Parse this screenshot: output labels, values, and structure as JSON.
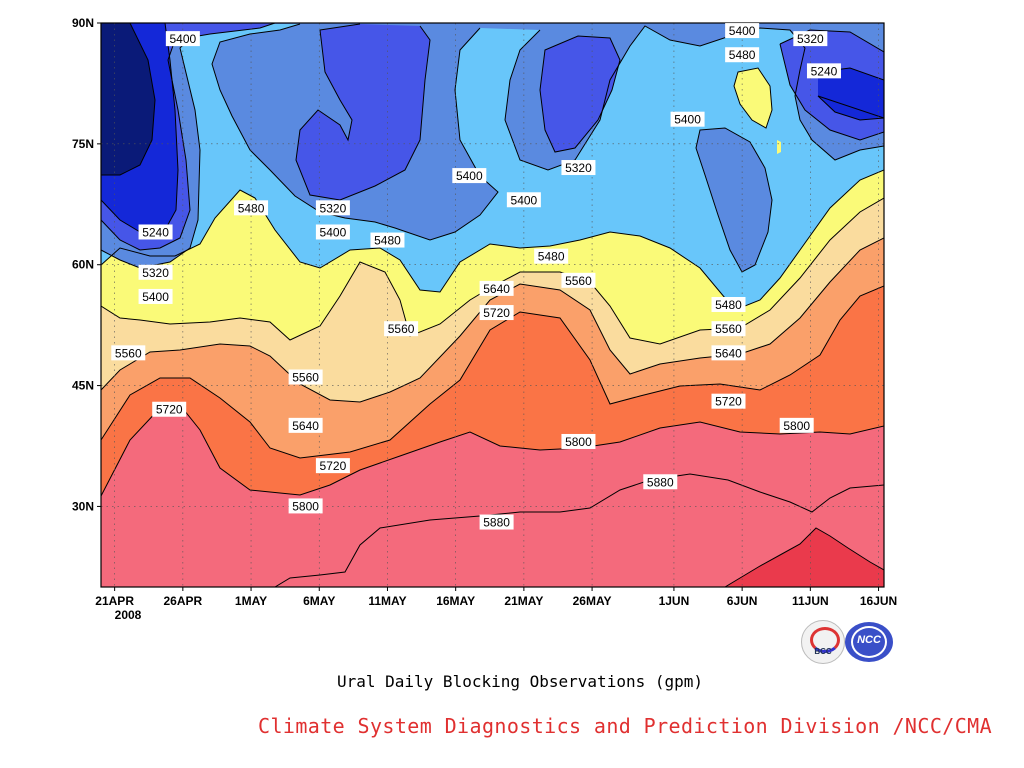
{
  "chart_data": {
    "type": "heatmap",
    "subtitle": "Ural Daily Blocking Observations (gpm)",
    "x_ticks": [
      "21APR",
      "26APR",
      "1MAY",
      "6MAY",
      "11MAY",
      "16MAY",
      "21MAY",
      "26MAY",
      "1JUN",
      "6JUN",
      "11JUN",
      "16JUN"
    ],
    "x_year_label": "2008",
    "y_ticks": [
      "30N",
      "45N",
      "60N",
      "75N",
      "90N"
    ],
    "ylim": [
      "20N",
      "90N"
    ],
    "xlim": [
      "20APR 2008",
      "16JUN 2008"
    ],
    "grid": true,
    "contour_levels": [
      5160,
      5240,
      5320,
      5400,
      5480,
      5560,
      5640,
      5720,
      5800,
      5880
    ],
    "contour_colors": [
      "#0a1a78",
      "#1428d8",
      "#4656e8",
      "#5a8ae0",
      "#68c6fa",
      "#fafa78",
      "#fadc9e",
      "#faa06a",
      "#fa7446",
      "#f46a7c",
      "#ea3a4c"
    ],
    "contour_labels": [
      {
        "value": "5400",
        "x": "26APR",
        "y": "88N"
      },
      {
        "value": "5480",
        "x": "1MAY",
        "y": "67N"
      },
      {
        "value": "5240",
        "x": "24APR",
        "y": "64N"
      },
      {
        "value": "5320",
        "x": "24APR",
        "y": "59N"
      },
      {
        "value": "5400",
        "x": "24APR",
        "y": "56N"
      },
      {
        "value": "5560",
        "x": "22APR",
        "y": "49N"
      },
      {
        "value": "5720",
        "x": "25APR",
        "y": "42N"
      },
      {
        "value": "5320",
        "x": "7MAY",
        "y": "67N"
      },
      {
        "value": "5400",
        "x": "7MAY",
        "y": "64N"
      },
      {
        "value": "5480",
        "x": "11MAY",
        "y": "63N"
      },
      {
        "value": "5560",
        "x": "5MAY",
        "y": "46N"
      },
      {
        "value": "5640",
        "x": "5MAY",
        "y": "40N"
      },
      {
        "value": "5720",
        "x": "7MAY",
        "y": "35N"
      },
      {
        "value": "5800",
        "x": "5MAY",
        "y": "30N"
      },
      {
        "value": "5560",
        "x": "12MAY",
        "y": "52N"
      },
      {
        "value": "5400",
        "x": "17MAY",
        "y": "71N"
      },
      {
        "value": "5640",
        "x": "19MAY",
        "y": "57N"
      },
      {
        "value": "5720",
        "x": "19MAY",
        "y": "54N"
      },
      {
        "value": "5880",
        "x": "19MAY",
        "y": "28N"
      },
      {
        "value": "5400",
        "x": "21MAY",
        "y": "68N"
      },
      {
        "value": "5480",
        "x": "23MAY",
        "y": "61N"
      },
      {
        "value": "5320",
        "x": "25MAY",
        "y": "72N"
      },
      {
        "value": "5560",
        "x": "25MAY",
        "y": "58N"
      },
      {
        "value": "5800",
        "x": "25MAY",
        "y": "38N"
      },
      {
        "value": "5880",
        "x": "31MAY",
        "y": "33N"
      },
      {
        "value": "5400",
        "x": "2JUN",
        "y": "78N"
      },
      {
        "value": "5400",
        "x": "6JUN",
        "y": "89N"
      },
      {
        "value": "5480",
        "x": "6JUN",
        "y": "86N"
      },
      {
        "value": "5480",
        "x": "5JUN",
        "y": "55N"
      },
      {
        "value": "5560",
        "x": "5JUN",
        "y": "52N"
      },
      {
        "value": "5640",
        "x": "5JUN",
        "y": "49N"
      },
      {
        "value": "5720",
        "x": "5JUN",
        "y": "43N"
      },
      {
        "value": "5800",
        "x": "10JUN",
        "y": "40N"
      },
      {
        "value": "5320",
        "x": "11JUN",
        "y": "88N"
      },
      {
        "value": "5240",
        "x": "12JUN",
        "y": "84N"
      }
    ]
  },
  "credit": "Climate System Diagnostics and Prediction Division /NCC/CMA",
  "logos": {
    "left_text": "BCC",
    "right_text": "NCC"
  }
}
